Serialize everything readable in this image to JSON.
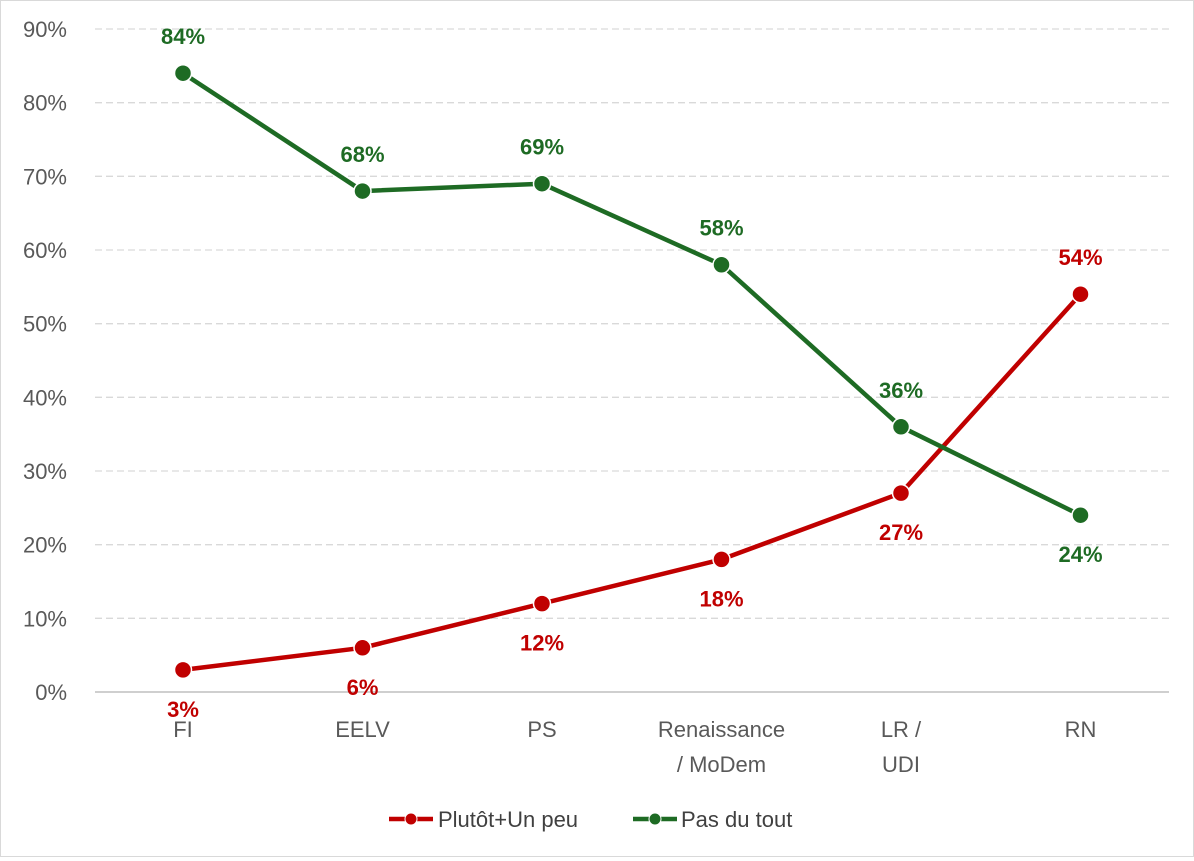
{
  "chart_data": {
    "type": "line",
    "title": "",
    "xlabel": "",
    "ylabel": "",
    "ylim": [
      0,
      90
    ],
    "yticks": [
      0,
      10,
      20,
      30,
      40,
      50,
      60,
      70,
      80,
      90
    ],
    "ytick_labels": [
      "0%",
      "10%",
      "20%",
      "30%",
      "40%",
      "50%",
      "60%",
      "70%",
      "80%",
      "90%"
    ],
    "categories": [
      [
        "FI"
      ],
      [
        "EELV"
      ],
      [
        "PS"
      ],
      [
        "Renaissance",
        "/ MoDem"
      ],
      [
        "LR /",
        "UDI"
      ],
      [
        "RN"
      ]
    ],
    "grid": true,
    "legend_position": "bottom",
    "series": [
      {
        "name": "Plutôt+Un peu",
        "color": "#c00000",
        "values": [
          3,
          6,
          12,
          18,
          27,
          54
        ],
        "labels": [
          "3%",
          "6%",
          "12%",
          "18%",
          "27%",
          "54%"
        ],
        "label_side": [
          "below",
          "below",
          "below",
          "below",
          "below",
          "above"
        ]
      },
      {
        "name": "Pas du tout",
        "color": "#1e6b24",
        "values": [
          84,
          68,
          69,
          58,
          36,
          24
        ],
        "labels": [
          "84%",
          "68%",
          "69%",
          "58%",
          "36%",
          "24%"
        ],
        "label_side": [
          "above",
          "above",
          "above",
          "above",
          "above",
          "below"
        ]
      }
    ]
  }
}
